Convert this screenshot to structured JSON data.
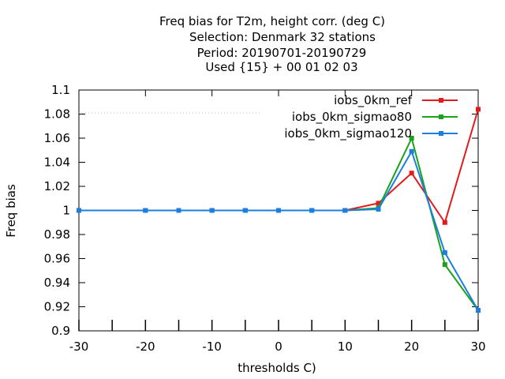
{
  "chart_data": {
    "type": "line",
    "title_lines": [
      "Freq bias  for T2m, height corr. (deg C)",
      "Selection: Denmark     32 stations",
      "Period: 20190701-20190729",
      "Used {15} + 00 01 02 03"
    ],
    "xlabel": "thresholds C)",
    "ylabel": "Freq bias",
    "xlim": [
      -30,
      30
    ],
    "ylim": [
      0.9,
      1.1
    ],
    "xticks": [
      -30,
      -20,
      -10,
      0,
      10,
      20,
      30
    ],
    "xticks_minor": [
      -25,
      -15,
      -5,
      5,
      15,
      25
    ],
    "yticks": [
      0.9,
      0.92,
      0.94,
      0.96,
      0.98,
      1,
      1.02,
      1.04,
      1.06,
      1.08,
      1.1
    ],
    "ytick_labels": [
      "0.9",
      "0.92",
      "0.94",
      "0.96",
      "0.98",
      "1",
      "1.02",
      "1.04",
      "1.06",
      "1.08",
      "1.1"
    ],
    "xtick_labels": [
      "-30",
      "-20",
      "-10",
      "0",
      "10",
      "20",
      "30"
    ],
    "legend_position": "top-right",
    "grid": false,
    "series": [
      {
        "name": "iobs_0km_ref",
        "color": "#e41a1c",
        "x": [
          -30,
          -20,
          -15,
          -10,
          -5,
          0,
          5,
          10,
          15,
          20,
          25,
          30
        ],
        "y": [
          1.0,
          1.0,
          1.0,
          1.0,
          1.0,
          1.0,
          1.0,
          1.0,
          1.006,
          1.031,
          0.99,
          1.084
        ]
      },
      {
        "name": "iobs_0km_sigmao80",
        "color": "#1aa31a",
        "x": [
          -30,
          -20,
          -15,
          -10,
          -5,
          0,
          5,
          10,
          15,
          20,
          25,
          30
        ],
        "y": [
          1.0,
          1.0,
          1.0,
          1.0,
          1.0,
          1.0,
          1.0,
          1.0,
          1.002,
          1.06,
          0.955,
          0.917
        ]
      },
      {
        "name": "iobs_0km_sigmao120",
        "color": "#1a7fe0",
        "x": [
          -30,
          -20,
          -15,
          -10,
          -5,
          0,
          5,
          10,
          15,
          20,
          25,
          30
        ],
        "y": [
          1.0,
          1.0,
          1.0,
          1.0,
          1.0,
          1.0,
          1.0,
          1.0,
          1.001,
          1.049,
          0.965,
          0.917
        ]
      }
    ]
  }
}
